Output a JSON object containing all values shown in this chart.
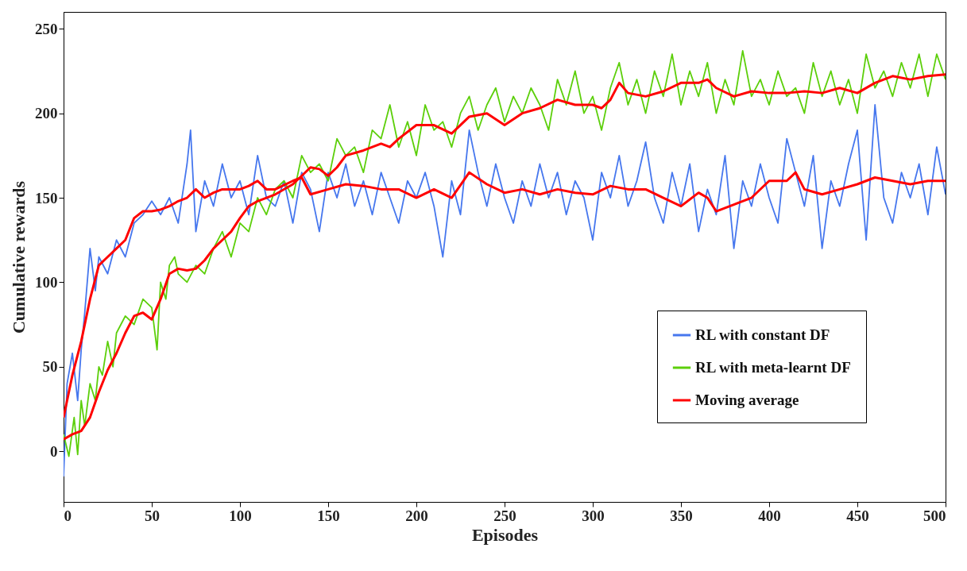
{
  "chart_data": {
    "type": "line",
    "xlabel": "Episodes",
    "ylabel": "Cumulative rewards",
    "xlim": [
      0,
      500
    ],
    "ylim": [
      -30,
      260
    ],
    "xticks": [
      0,
      50,
      100,
      150,
      200,
      250,
      300,
      350,
      400,
      450,
      500
    ],
    "yticks": [
      0,
      50,
      100,
      150,
      200,
      250
    ],
    "legend": "bottom right",
    "series": [
      {
        "name": "RL with constant DF",
        "color": "#4677ee",
        "x": [
          0,
          2,
          5,
          8,
          10,
          12,
          15,
          18,
          20,
          25,
          30,
          35,
          40,
          45,
          50,
          55,
          60,
          65,
          70,
          72,
          75,
          80,
          85,
          90,
          95,
          100,
          105,
          110,
          115,
          120,
          125,
          130,
          135,
          140,
          145,
          150,
          155,
          160,
          165,
          170,
          175,
          180,
          185,
          190,
          195,
          200,
          205,
          210,
          215,
          220,
          225,
          230,
          235,
          240,
          245,
          250,
          255,
          260,
          265,
          270,
          275,
          280,
          285,
          290,
          295,
          300,
          305,
          310,
          315,
          320,
          325,
          330,
          335,
          340,
          345,
          350,
          355,
          360,
          365,
          370,
          375,
          380,
          385,
          390,
          395,
          400,
          405,
          410,
          415,
          420,
          425,
          430,
          435,
          440,
          445,
          450,
          455,
          460,
          465,
          470,
          475,
          480,
          485,
          490,
          495,
          500
        ],
        "values": [
          -15,
          40,
          58,
          30,
          60,
          82,
          120,
          95,
          115,
          105,
          125,
          115,
          135,
          140,
          148,
          140,
          150,
          135,
          170,
          190,
          130,
          160,
          145,
          170,
          150,
          160,
          140,
          175,
          150,
          145,
          160,
          135,
          165,
          155,
          130,
          165,
          150,
          170,
          145,
          160,
          140,
          165,
          150,
          135,
          160,
          150,
          165,
          145,
          115,
          160,
          140,
          190,
          165,
          145,
          170,
          150,
          135,
          160,
          145,
          170,
          150,
          165,
          140,
          160,
          150,
          125,
          165,
          150,
          175,
          145,
          160,
          183,
          150,
          135,
          165,
          145,
          170,
          130,
          155,
          140,
          175,
          120,
          160,
          145,
          170,
          150,
          135,
          185,
          165,
          145,
          175,
          120,
          160,
          145,
          170,
          190,
          125,
          205,
          150,
          135,
          165,
          150,
          170,
          140,
          180,
          152
        ]
      },
      {
        "name": "RL with meta-learnt DF",
        "color": "#5ccf0a",
        "x": [
          0,
          3,
          6,
          8,
          10,
          12,
          15,
          18,
          20,
          22,
          25,
          28,
          30,
          35,
          40,
          45,
          50,
          53,
          55,
          58,
          60,
          63,
          65,
          70,
          75,
          80,
          85,
          90,
          95,
          100,
          105,
          110,
          115,
          120,
          125,
          130,
          135,
          140,
          145,
          150,
          155,
          160,
          165,
          170,
          175,
          180,
          185,
          190,
          195,
          200,
          205,
          210,
          215,
          220,
          225,
          230,
          235,
          240,
          245,
          250,
          255,
          260,
          265,
          270,
          275,
          280,
          285,
          290,
          295,
          300,
          305,
          310,
          315,
          320,
          325,
          330,
          335,
          340,
          345,
          350,
          355,
          360,
          365,
          370,
          375,
          380,
          385,
          390,
          395,
          400,
          405,
          410,
          415,
          420,
          425,
          430,
          435,
          440,
          445,
          450,
          455,
          460,
          465,
          470,
          475,
          480,
          485,
          490,
          495,
          500
        ],
        "values": [
          10,
          -3,
          20,
          -2,
          30,
          15,
          40,
          30,
          50,
          45,
          65,
          50,
          70,
          80,
          75,
          90,
          85,
          60,
          100,
          90,
          110,
          115,
          105,
          100,
          110,
          105,
          120,
          130,
          115,
          135,
          130,
          150,
          140,
          155,
          160,
          150,
          175,
          165,
          170,
          160,
          185,
          175,
          180,
          165,
          190,
          185,
          205,
          180,
          195,
          175,
          205,
          190,
          195,
          180,
          200,
          210,
          190,
          205,
          215,
          195,
          210,
          200,
          215,
          205,
          190,
          220,
          205,
          225,
          200,
          210,
          190,
          215,
          230,
          205,
          220,
          200,
          225,
          210,
          235,
          205,
          225,
          210,
          230,
          200,
          220,
          205,
          237,
          210,
          220,
          205,
          225,
          210,
          215,
          200,
          230,
          210,
          225,
          205,
          220,
          200,
          235,
          215,
          225,
          210,
          230,
          215,
          235,
          210,
          235,
          220
        ]
      },
      {
        "name": "Moving average",
        "color": "#ff0000",
        "x": [
          0,
          5,
          10,
          15,
          20,
          25,
          30,
          35,
          40,
          45,
          50,
          55,
          60,
          65,
          70,
          75,
          80,
          85,
          90,
          95,
          100,
          105,
          110,
          115,
          120,
          130,
          135,
          140,
          150,
          160,
          170,
          180,
          190,
          200,
          210,
          220,
          230,
          240,
          250,
          260,
          270,
          280,
          290,
          300,
          310,
          320,
          330,
          340,
          350,
          360,
          365,
          370,
          380,
          390,
          400,
          410,
          415,
          420,
          430,
          440,
          450,
          460,
          470,
          480,
          490,
          500
        ],
        "values": [
          20,
          45,
          65,
          90,
          110,
          115,
          120,
          125,
          138,
          142,
          142,
          143,
          145,
          148,
          150,
          155,
          150,
          153,
          155,
          155,
          155,
          157,
          160,
          155,
          155,
          160,
          162,
          152,
          155,
          158,
          157,
          155,
          155,
          150,
          155,
          150,
          165,
          158,
          153,
          155,
          152,
          155,
          153,
          152,
          157,
          155,
          155,
          150,
          145,
          153,
          150,
          142,
          146,
          150,
          160,
          160,
          165,
          155,
          152,
          155,
          158,
          162,
          160,
          158,
          160,
          160
        ]
      },
      {
        "color": "#ff0000",
        "x": [
          0,
          5,
          10,
          15,
          20,
          25,
          30,
          35,
          40,
          45,
          50,
          55,
          60,
          65,
          70,
          75,
          80,
          85,
          90,
          95,
          100,
          105,
          110,
          120,
          130,
          140,
          145,
          150,
          155,
          160,
          170,
          180,
          185,
          190,
          200,
          210,
          220,
          230,
          240,
          250,
          260,
          270,
          280,
          290,
          300,
          305,
          310,
          315,
          320,
          330,
          340,
          350,
          360,
          365,
          370,
          380,
          390,
          400,
          410,
          420,
          430,
          440,
          450,
          460,
          470,
          480,
          490,
          500
        ],
        "values": [
          7,
          10,
          12,
          20,
          35,
          48,
          58,
          70,
          80,
          82,
          78,
          90,
          105,
          108,
          107,
          108,
          113,
          120,
          125,
          130,
          138,
          145,
          148,
          152,
          158,
          168,
          167,
          163,
          168,
          175,
          178,
          182,
          180,
          185,
          193,
          193,
          188,
          198,
          200,
          193,
          200,
          203,
          208,
          205,
          205,
          203,
          208,
          218,
          212,
          210,
          213,
          218,
          218,
          220,
          215,
          210,
          213,
          212,
          212,
          213,
          212,
          215,
          212,
          218,
          222,
          220,
          222,
          223
        ]
      }
    ]
  }
}
